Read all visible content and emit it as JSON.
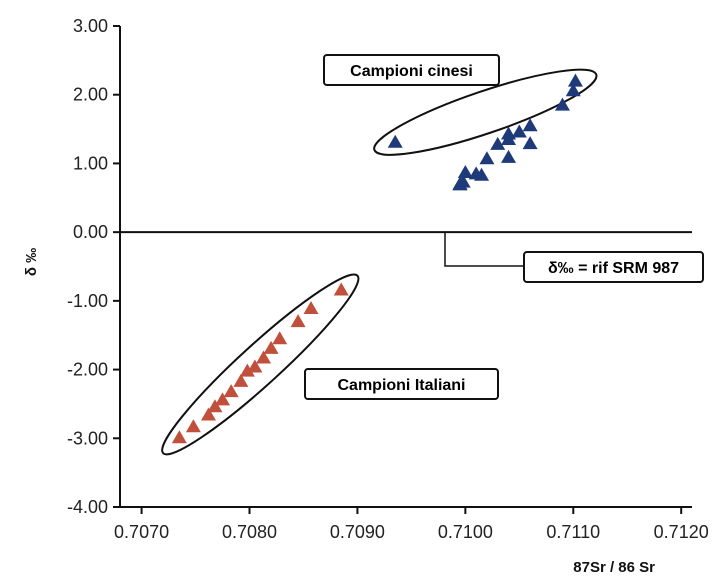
{
  "chart_data": {
    "type": "scatter",
    "xlabel": "87Sr / 86 Sr",
    "ylabel": "δ ‰",
    "xlim": [
      0.7068,
      0.7121
    ],
    "ylim": [
      -4.0,
      3.0
    ],
    "x_ticks": [
      "0.7070",
      "0.7080",
      "0.7090",
      "0.7100",
      "0.7110",
      "0.7120"
    ],
    "x_tick_values": [
      0.707,
      0.708,
      0.709,
      0.71,
      0.711,
      0.712
    ],
    "y_ticks": [
      "3.00",
      "2.00",
      "1.00",
      "0.00",
      "-1.00",
      "-2.00",
      "-3.00",
      "-4.00"
    ],
    "y_tick_values": [
      3,
      2,
      1,
      0,
      -1,
      -2,
      -3,
      -4
    ],
    "grid": false,
    "reference_line": {
      "y": 0,
      "label": "δ‰ = rif SRM 987"
    },
    "series": [
      {
        "name": "Campioni cinesi",
        "color": "#1f3a78",
        "marker": "triangle",
        "points": [
          [
            0.70995,
            0.69
          ],
          [
            0.7101,
            0.84
          ],
          [
            0.70998,
            0.72
          ],
          [
            0.7102,
            1.06
          ],
          [
            0.70995,
            0.68
          ],
          [
            0.7104,
            1.08
          ],
          [
            0.7103,
            1.27
          ],
          [
            0.7104,
            1.42
          ],
          [
            0.70935,
            1.3
          ],
          [
            0.7105,
            1.45
          ],
          [
            0.7106,
            1.54
          ],
          [
            0.7106,
            1.28
          ],
          [
            0.7109,
            1.84
          ],
          [
            0.71,
            0.86
          ],
          [
            0.71015,
            0.82
          ],
          [
            0.711,
            2.05
          ],
          [
            0.71102,
            2.19
          ],
          [
            0.7104,
            1.34
          ]
        ]
      },
      {
        "name": "Campioni Italiani",
        "color": "#c0503c",
        "marker": "triangle",
        "points": [
          [
            0.70735,
            -3.0
          ],
          [
            0.70748,
            -2.84
          ],
          [
            0.70762,
            -2.67
          ],
          [
            0.70768,
            -2.55
          ],
          [
            0.70775,
            -2.45
          ],
          [
            0.70783,
            -2.33
          ],
          [
            0.70792,
            -2.18
          ],
          [
            0.70798,
            -2.03
          ],
          [
            0.70805,
            -1.97
          ],
          [
            0.70813,
            -1.84
          ],
          [
            0.7082,
            -1.7
          ],
          [
            0.70828,
            -1.56
          ],
          [
            0.70845,
            -1.31
          ],
          [
            0.70857,
            -1.12
          ],
          [
            0.70885,
            -0.85
          ]
        ]
      }
    ],
    "annotations": [
      "Campioni cinesi",
      "Campioni Italiani",
      "δ‰ = rif SRM 987"
    ]
  }
}
